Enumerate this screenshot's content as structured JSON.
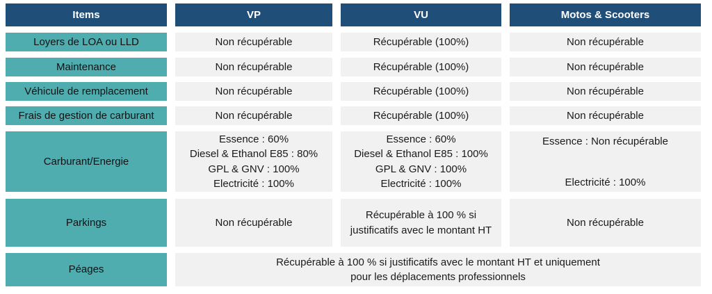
{
  "header": {
    "items": "Items",
    "vp": "VP",
    "vu": "VU",
    "motos": "Motos & Scooters"
  },
  "rows": {
    "loyers": {
      "label": "Loyers de LOA ou LLD",
      "vp": "Non récupérable",
      "vu": "Récupérable (100%)",
      "motos": "Non récupérable"
    },
    "maintenance": {
      "label": "Maintenance",
      "vp": "Non récupérable",
      "vu": "Récupérable (100%)",
      "motos": "Non récupérable"
    },
    "vehicule": {
      "label": "Véhicule de remplacement",
      "vp": "Non récupérable",
      "vu": "Récupérable (100%)",
      "motos": "Non récupérable"
    },
    "frais": {
      "label": "Frais de gestion de carburant",
      "vp": "Non récupérable",
      "vu": "Récupérable (100%)",
      "motos": "Non récupérable"
    },
    "carburant": {
      "label": "Carburant/Energie",
      "vp": [
        "Essence : 60%",
        "Diesel & Ethanol E85 : 80%",
        "GPL & GNV : 100%",
        "Electricité : 100%"
      ],
      "vu": [
        "Essence : 60%",
        "Diesel & Ethanol E85 : 100%",
        "GPL & GNV : 100%",
        "Electricité : 100%"
      ],
      "motos": [
        "Essence : Non récupérable",
        "Electricité : 100%"
      ]
    },
    "parkings": {
      "label": "Parkings",
      "vp": "Non récupérable",
      "vu": [
        "Récupérable à 100 % si",
        "justificatifs avec le montant HT"
      ],
      "motos": "Non récupérable"
    },
    "peages": {
      "label": "Péages",
      "all": [
        "Récupérable à 100 % si justificatifs avec le montant HT et uniquement",
        "pour les déplacements professionnels"
      ]
    }
  }
}
